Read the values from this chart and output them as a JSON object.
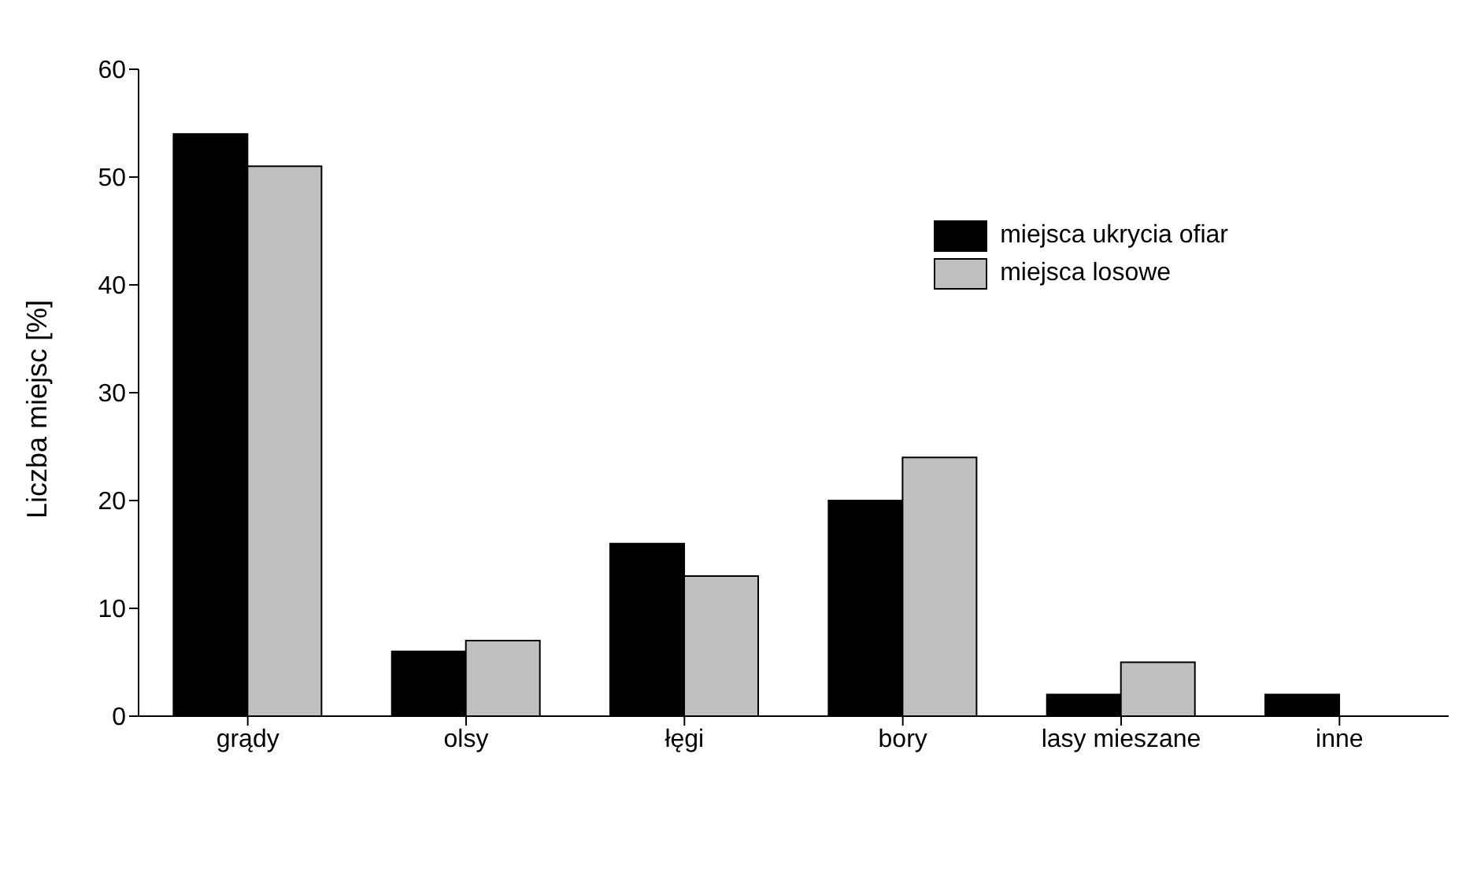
{
  "chart_data": {
    "type": "bar",
    "ylabel": "Liczba miejsc [%]",
    "categories": [
      "grądy",
      "olsy",
      "łęgi",
      "bory",
      "lasy mieszane",
      "inne"
    ],
    "series": [
      {
        "name": "miejsca ukrycia ofiar",
        "color": "#000000",
        "values": [
          54,
          6,
          16,
          20,
          2,
          2
        ]
      },
      {
        "name": "miejsca losowe",
        "color": "#c0c0c0",
        "values": [
          51,
          7,
          13,
          24,
          5,
          0
        ]
      }
    ],
    "ylim": [
      0,
      60
    ],
    "yticks": [
      0,
      10,
      20,
      30,
      40,
      50,
      60
    ],
    "legend": "top right"
  }
}
